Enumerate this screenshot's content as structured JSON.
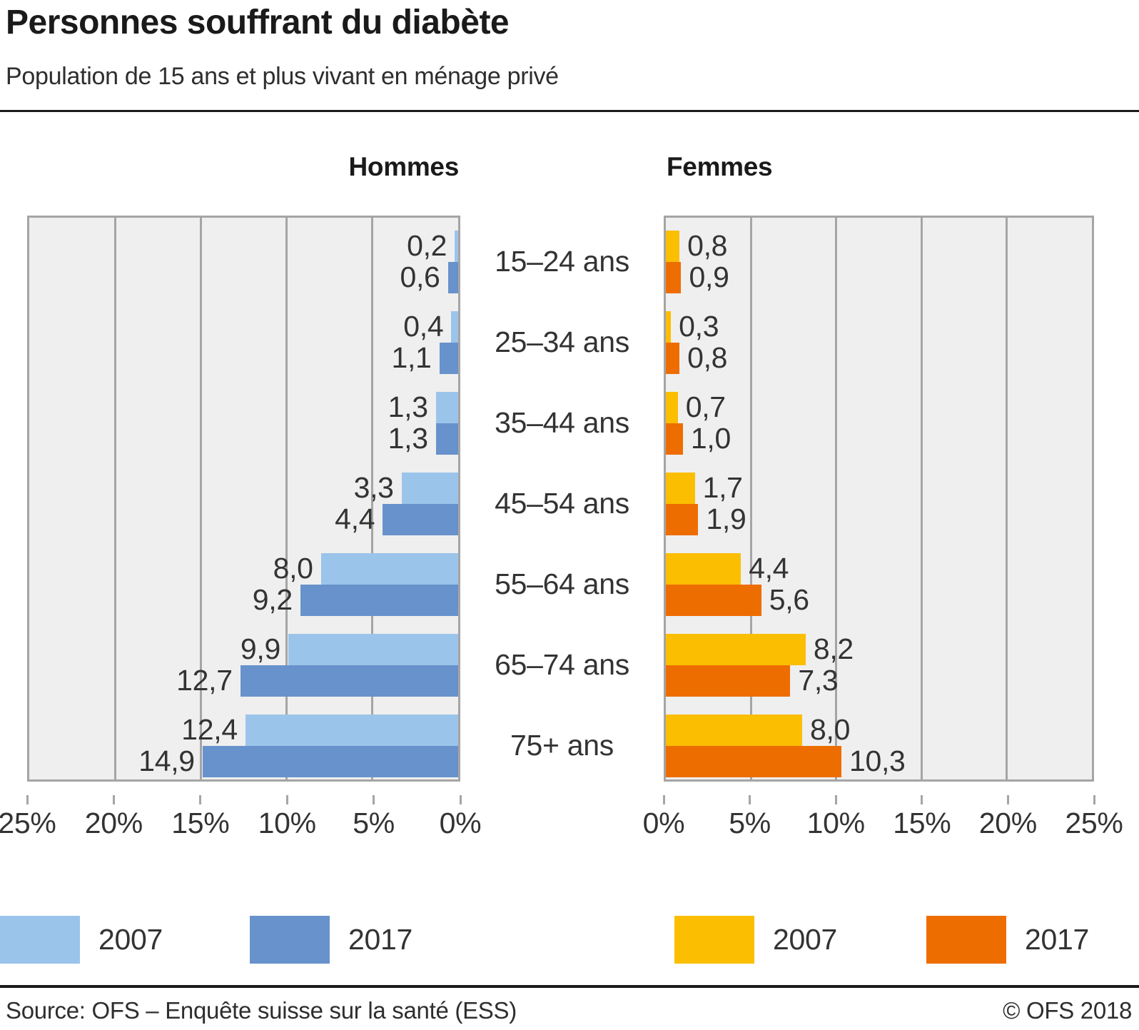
{
  "title": "Personnes souffrant du diabète",
  "subtitle": "Population de 15 ans et plus vivant en ménage privé",
  "chart_data": {
    "type": "bar",
    "layout": "back-to-back horizontal pyramid",
    "unit": "%",
    "xlim": [
      0,
      25
    ],
    "grid_step": 5,
    "grid": "on",
    "categories": [
      "15–24 ans",
      "25–34 ans",
      "35–44 ans",
      "45–54 ans",
      "55–64 ans",
      "65–74 ans",
      "75+ ans"
    ],
    "panels": [
      {
        "id": "hommes",
        "title": "Hommes",
        "bars_anchor": "right",
        "axis_ticks": [
          "25%",
          "20%",
          "15%",
          "10%",
          "5%",
          "0%"
        ],
        "series": [
          {
            "name": "2007",
            "color": "#9BC4EA",
            "values": [
              0.2,
              0.4,
              1.3,
              3.3,
              8.0,
              9.9,
              12.4
            ],
            "labels": [
              "0,2",
              "0,4",
              "1,3",
              "3,3",
              "8,0",
              "9,9",
              "12,4"
            ]
          },
          {
            "name": "2017",
            "color": "#6892CB",
            "values": [
              0.6,
              1.1,
              1.3,
              4.4,
              9.2,
              12.7,
              14.9
            ],
            "labels": [
              "0,6",
              "1,1",
              "1,3",
              "4,4",
              "9,2",
              "12,7",
              "14,9"
            ]
          }
        ]
      },
      {
        "id": "femmes",
        "title": "Femmes",
        "bars_anchor": "left",
        "axis_ticks": [
          "0%",
          "5%",
          "10%",
          "15%",
          "20%",
          "25%"
        ],
        "series": [
          {
            "name": "2007",
            "color": "#FBBE00",
            "values": [
              0.8,
              0.3,
              0.7,
              1.7,
              4.4,
              8.2,
              8.0
            ],
            "labels": [
              "0,8",
              "0,3",
              "0,7",
              "1,7",
              "4,4",
              "8,2",
              "8,0"
            ]
          },
          {
            "name": "2017",
            "color": "#EE6D00",
            "values": [
              0.9,
              0.8,
              1.0,
              1.9,
              5.6,
              7.3,
              10.3
            ],
            "labels": [
              "0,9",
              "0,8",
              "1,0",
              "1,9",
              "5,6",
              "7,3",
              "10,3"
            ]
          }
        ]
      }
    ]
  },
  "colors": {
    "plot_bg": "#efefef",
    "grid": "#a5a5a5",
    "rule": "#1a1a1a",
    "text": "#333333"
  },
  "footer": {
    "source": "Source: OFS – Enquête suisse sur la santé (ESS)",
    "copyright": "© OFS 2018"
  }
}
